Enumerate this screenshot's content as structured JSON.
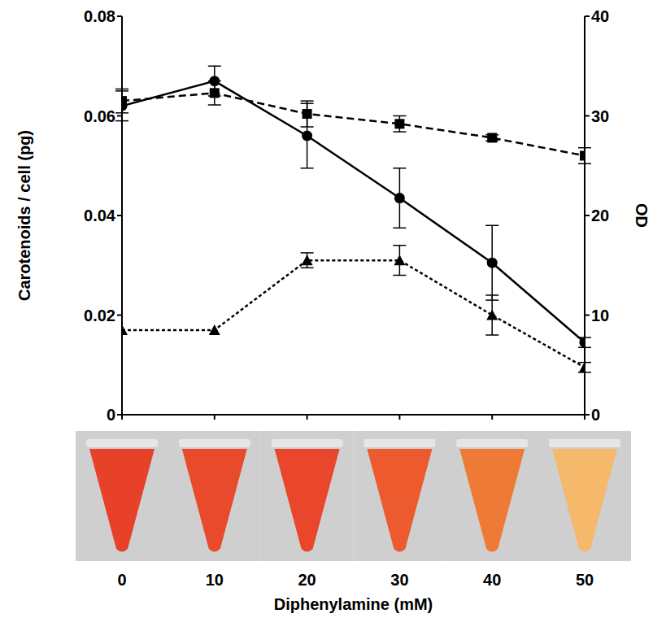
{
  "chart_data": {
    "type": "line",
    "x": [
      0,
      10,
      20,
      30,
      40,
      50
    ],
    "xlim": [
      0,
      50
    ],
    "xticks": [
      0,
      10,
      20,
      30,
      40,
      50
    ],
    "x_label": "Diphenylamine (mM)",
    "y_label": "Carotenoids / cell (pg)",
    "ylim": [
      0,
      0.08
    ],
    "yticks": [
      0,
      0.02,
      0.04,
      0.06,
      0.08
    ],
    "y2_label": "OD",
    "y2lim": [
      0,
      40
    ],
    "y2ticks": [
      0,
      10,
      20,
      30,
      40
    ],
    "grid": false,
    "series": [
      {
        "color": "#000000",
        "marker": "circle",
        "line_style": "solid",
        "axis": "y",
        "values": [
          0.062,
          0.067,
          0.056,
          0.0435,
          0.0305,
          0.0145
        ],
        "errors": [
          0.003,
          0.003,
          0.0065,
          0.006,
          0.0075,
          0.001
        ]
      },
      {
        "color": "#000000",
        "marker": "square",
        "line_style": "dashed",
        "axis": "y2",
        "values": [
          31.5,
          32.3,
          30.2,
          29.2,
          27.8,
          26.0
        ],
        "errors": [
          1.2,
          1.2,
          1.3,
          0.8,
          0.3,
          0.8
        ]
      },
      {
        "color": "#000000",
        "marker": "triangle",
        "line_style": "dotted",
        "axis": "y",
        "values": [
          0.017,
          0.017,
          0.031,
          0.031,
          0.02,
          0.0095
        ],
        "errors": [
          0,
          0,
          0.0015,
          0.003,
          0.004,
          0.001
        ]
      }
    ]
  }
}
